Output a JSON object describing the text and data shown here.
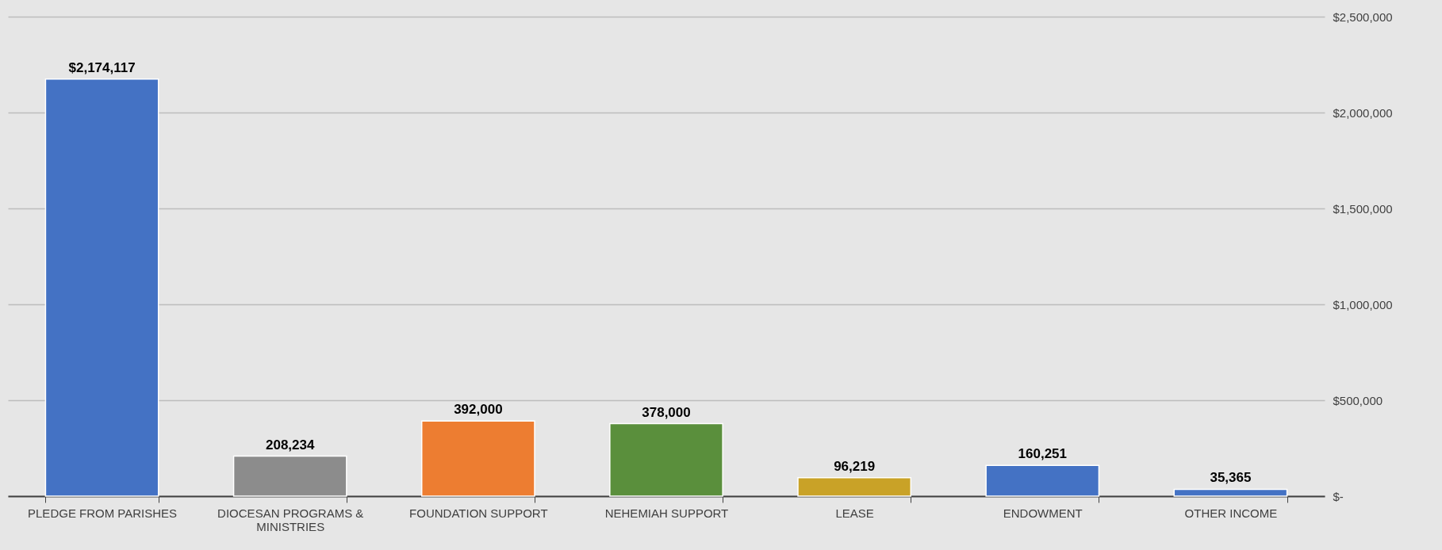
{
  "chart_data": {
    "type": "bar",
    "categories": [
      "PLEDGE FROM PARISHES",
      "DIOCESAN PROGRAMS & MINISTRIES",
      "FOUNDATION SUPPORT",
      "NEHEMIAH SUPPORT",
      "LEASE",
      "ENDOWMENT",
      "OTHER INCOME"
    ],
    "values": [
      2174117,
      208234,
      392000,
      378000,
      96219,
      160251,
      35365
    ],
    "colors": [
      "#4472c4",
      "#8c8c8c",
      "#ed7d31",
      "#5a8f3c",
      "#c9a227",
      "#4472c4",
      "#4472c4"
    ],
    "value_labels": [
      "$2,174,117",
      "208,234",
      "392,000",
      "378,000",
      "96,219",
      "160,251",
      "35,365"
    ],
    "ylim": [
      0,
      2500000
    ],
    "yticks": [
      {
        "value": 0,
        "label": "$-"
      },
      {
        "value": 500000,
        "label": "$500,000"
      },
      {
        "value": 1000000,
        "label": "$1,000,000"
      },
      {
        "value": 1500000,
        "label": "$1,500,000"
      },
      {
        "value": 2000000,
        "label": "$2,000,000"
      },
      {
        "value": 2500000,
        "label": "$2,500,000"
      }
    ],
    "grid": true
  }
}
